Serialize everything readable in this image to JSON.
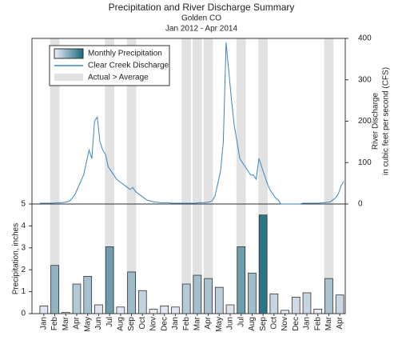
{
  "chart_data": {
    "type": "precip_discharge",
    "title": "Precipitation and River Discharge Summary",
    "subtitle": "Golden CO",
    "period": "Jan 2012 - Apr 2014",
    "categories": [
      "Jan",
      "Feb",
      "Mar",
      "Apr",
      "May",
      "Jun",
      "Jul",
      "Aug",
      "Sep",
      "Oct",
      "Nov",
      "Dec",
      "Jan",
      "Feb",
      "Mar",
      "Apr",
      "May",
      "Jun",
      "Jul",
      "Aug",
      "Sep",
      "Oct",
      "Nov",
      "Dec",
      "Jan",
      "Feb",
      "Mar",
      "Apr"
    ],
    "above_average": [
      false,
      true,
      false,
      false,
      false,
      false,
      true,
      false,
      true,
      false,
      false,
      false,
      false,
      true,
      true,
      true,
      false,
      false,
      true,
      false,
      true,
      false,
      false,
      false,
      false,
      false,
      true,
      false
    ],
    "shade_name": "Actual > Average",
    "shade_color": "#e2e2e2",
    "precipitation": {
      "name": "Monthly Precipitation",
      "colormap": [
        "#f0eef8",
        "#17697c"
      ],
      "values": [
        0.35,
        2.2,
        0.05,
        1.35,
        1.7,
        0.4,
        3.05,
        0.3,
        1.9,
        1.05,
        0.2,
        0.35,
        0.3,
        1.35,
        1.75,
        1.6,
        1.2,
        0.4,
        3.05,
        1.85,
        4.5,
        0.9,
        0.15,
        0.75,
        0.95,
        0.2,
        1.6,
        0.85
      ],
      "ylabel": "Precipitation, inches",
      "ylim": [
        0,
        5
      ],
      "yticks": [
        0,
        1,
        2,
        3,
        4,
        5
      ]
    },
    "discharge": {
      "name": "Clear Creek Discharge",
      "color": "#3a86c0",
      "values": [
        2,
        2,
        2,
        2,
        2,
        2,
        3,
        3,
        3,
        4,
        5,
        8,
        15,
        25,
        40,
        55,
        70,
        100,
        130,
        110,
        200,
        210,
        150,
        130,
        120,
        90,
        80,
        70,
        60,
        55,
        50,
        45,
        40,
        35,
        40,
        30,
        25,
        20,
        15,
        10,
        8,
        6,
        5,
        4,
        3,
        3,
        3,
        3,
        2,
        2,
        2,
        2,
        2,
        2,
        2,
        2,
        2,
        2,
        3,
        3,
        3,
        4,
        5,
        8,
        20,
        50,
        80,
        150,
        390,
        320,
        250,
        190,
        150,
        110,
        100,
        90,
        80,
        70,
        70,
        60,
        110,
        90,
        70,
        50,
        35,
        25,
        15,
        10,
        0,
        0,
        0,
        0,
        0,
        0,
        0,
        0,
        2,
        2,
        2,
        2,
        2,
        2,
        2,
        3,
        3,
        4,
        5,
        10,
        15,
        25,
        45,
        55
      ],
      "ylabel": [
        "River Discharge",
        "in cubic feet per second (CFS)"
      ],
      "ylim": [
        0,
        400
      ],
      "yticks": [
        0,
        100,
        200,
        300,
        400
      ]
    }
  }
}
